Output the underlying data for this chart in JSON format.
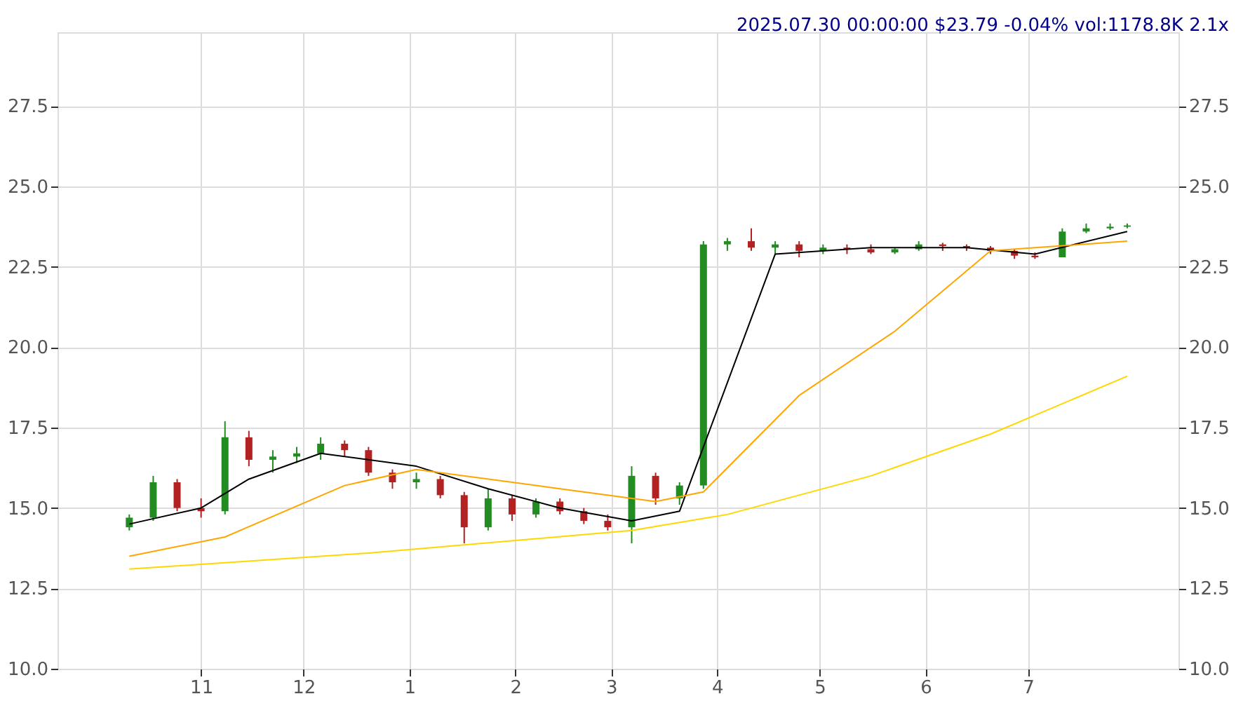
{
  "chart_data": {
    "type": "candlestick",
    "title": "2025.07.30 00:00:00 $23.79 -0.04% vol:1178.8K 2.1x",
    "x": [
      "2024-10-11",
      "2024-10-18",
      "2024-10-25",
      "2024-11-01",
      "2024-11-08",
      "2024-11-15",
      "2024-11-22",
      "2024-11-29",
      "2024-12-06",
      "2024-12-13",
      "2024-12-20",
      "2024-12-27",
      "2025-01-03",
      "2025-01-10",
      "2025-01-17",
      "2025-01-24",
      "2025-01-31",
      "2025-02-07",
      "2025-02-14",
      "2025-02-21",
      "2025-02-28",
      "2025-03-07",
      "2025-03-14",
      "2025-03-21",
      "2025-03-28",
      "2025-04-04",
      "2025-04-11",
      "2025-04-18",
      "2025-04-25",
      "2025-05-02",
      "2025-05-09",
      "2025-05-16",
      "2025-05-23",
      "2025-05-30",
      "2025-06-06",
      "2025-06-13",
      "2025-06-20",
      "2025-06-27",
      "2025-07-03",
      "2025-07-11",
      "2025-07-18",
      "2025-07-25",
      "2025-07-30"
    ],
    "ohlc": [
      [
        14.4,
        14.8,
        14.3,
        14.7
      ],
      [
        14.7,
        16.0,
        14.6,
        15.8
      ],
      [
        15.8,
        15.9,
        14.9,
        15.0
      ],
      [
        15.0,
        15.3,
        14.7,
        14.9
      ],
      [
        14.9,
        17.7,
        14.8,
        17.2
      ],
      [
        17.2,
        17.4,
        16.3,
        16.5
      ],
      [
        16.5,
        16.8,
        16.1,
        16.6
      ],
      [
        16.6,
        16.9,
        16.4,
        16.7
      ],
      [
        16.7,
        17.2,
        16.5,
        17.0
      ],
      [
        17.0,
        17.1,
        16.6,
        16.8
      ],
      [
        16.8,
        16.9,
        16.0,
        16.1
      ],
      [
        16.1,
        16.2,
        15.6,
        15.8
      ],
      [
        15.8,
        16.1,
        15.6,
        15.9
      ],
      [
        15.9,
        16.0,
        15.3,
        15.4
      ],
      [
        15.4,
        15.5,
        13.9,
        14.4
      ],
      [
        14.4,
        15.6,
        14.3,
        15.3
      ],
      [
        15.3,
        15.4,
        14.6,
        14.8
      ],
      [
        14.8,
        15.3,
        14.7,
        15.2
      ],
      [
        15.2,
        15.3,
        14.8,
        14.9
      ],
      [
        14.9,
        15.0,
        14.5,
        14.6
      ],
      [
        14.6,
        14.8,
        14.3,
        14.4
      ],
      [
        14.4,
        16.3,
        13.9,
        16.0
      ],
      [
        16.0,
        16.1,
        15.1,
        15.3
      ],
      [
        15.3,
        15.8,
        15.1,
        15.7
      ],
      [
        15.7,
        23.3,
        15.6,
        23.2
      ],
      [
        23.2,
        23.4,
        23.0,
        23.3
      ],
      [
        23.3,
        23.7,
        23.0,
        23.1
      ],
      [
        23.1,
        23.3,
        22.9,
        23.2
      ],
      [
        23.2,
        23.3,
        22.8,
        23.0
      ],
      [
        23.0,
        23.2,
        22.9,
        23.1
      ],
      [
        23.1,
        23.2,
        22.9,
        23.05
      ],
      [
        23.05,
        23.2,
        22.9,
        22.95
      ],
      [
        22.95,
        23.1,
        22.9,
        23.05
      ],
      [
        23.05,
        23.3,
        23.0,
        23.2
      ],
      [
        23.2,
        23.25,
        23.0,
        23.15
      ],
      [
        23.15,
        23.2,
        23.0,
        23.1
      ],
      [
        23.1,
        23.15,
        22.9,
        23.0
      ],
      [
        23.0,
        23.05,
        22.75,
        22.85
      ],
      [
        22.85,
        22.95,
        22.75,
        22.8
      ],
      [
        22.8,
        23.7,
        22.8,
        23.6
      ],
      [
        23.6,
        23.85,
        23.55,
        23.7
      ],
      [
        23.7,
        23.85,
        23.65,
        23.75
      ],
      [
        23.75,
        23.85,
        23.7,
        23.79
      ]
    ],
    "colors": [
      "#228b22",
      "#228b22",
      "#b22222",
      "#b22222",
      "#228b22",
      "#b22222",
      "#228b22",
      "#228b22",
      "#228b22",
      "#b22222",
      "#b22222",
      "#b22222",
      "#228b22",
      "#b22222",
      "#b22222",
      "#228b22",
      "#b22222",
      "#228b22",
      "#b22222",
      "#b22222",
      "#b22222",
      "#228b22",
      "#b22222",
      "#228b22",
      "#228b22",
      "#228b22",
      "#b22222",
      "#228b22",
      "#b22222",
      "#228b22",
      "#b22222",
      "#b22222",
      "#228b22",
      "#228b22",
      "#b22222",
      "#b22222",
      "#b22222",
      "#b22222",
      "#b22222",
      "#228b22",
      "#228b22",
      "#228b22",
      "#228b22"
    ],
    "series": [
      {
        "type": "line",
        "color": "#000000",
        "x": [
          "2024-10-11",
          "2024-11-01",
          "2024-11-15",
          "2024-12-06",
          "2025-01-03",
          "2025-01-24",
          "2025-02-14",
          "2025-03-07",
          "2025-03-21",
          "2025-04-18",
          "2025-05-16",
          "2025-06-13",
          "2025-07-03",
          "2025-07-30"
        ],
        "values": [
          14.5,
          15.0,
          15.9,
          16.7,
          16.3,
          15.6,
          15.0,
          14.6,
          14.9,
          22.9,
          23.1,
          23.1,
          22.9,
          23.6
        ]
      },
      {
        "type": "line",
        "color": "#ffa500",
        "x": [
          "2024-10-11",
          "2024-11-08",
          "2024-12-13",
          "2025-01-03",
          "2025-02-14",
          "2025-03-14",
          "2025-03-28",
          "2025-04-25",
          "2025-05-23",
          "2025-06-20",
          "2025-07-30"
        ],
        "values": [
          13.5,
          14.1,
          15.7,
          16.2,
          15.6,
          15.2,
          15.5,
          18.5,
          20.5,
          23.0,
          23.3
        ]
      },
      {
        "type": "line",
        "color": "#ffd700",
        "x": [
          "2024-10-11",
          "2024-12-20",
          "2025-03-07",
          "2025-04-04",
          "2025-05-16",
          "2025-06-20",
          "2025-07-30"
        ],
        "values": [
          13.1,
          13.6,
          14.3,
          14.8,
          16.0,
          17.3,
          19.1
        ]
      }
    ],
    "xlim": [
      "2024-09-20",
      "2025-08-14"
    ],
    "xticks": [
      {
        "value": "2024-11-01",
        "label": "11"
      },
      {
        "value": "2024-12-01",
        "label": "12"
      },
      {
        "value": "2025-01-01",
        "label": "1"
      },
      {
        "value": "2025-02-01",
        "label": "2"
      },
      {
        "value": "2025-03-01",
        "label": "3"
      },
      {
        "value": "2025-04-01",
        "label": "4"
      },
      {
        "value": "2025-05-01",
        "label": "5"
      },
      {
        "value": "2025-06-01",
        "label": "6"
      },
      {
        "value": "2025-07-01",
        "label": "7"
      }
    ],
    "ylim": [
      10,
      29.8
    ],
    "yticks": [
      {
        "value": 10,
        "label": "10.0"
      },
      12.5,
      {
        "value": 15,
        "label": "15.0"
      },
      17.5,
      {
        "value": 20,
        "label": "20.0"
      },
      22.5,
      {
        "value": 25,
        "label": "25.0"
      },
      27.5
    ],
    "y2lim": [
      10,
      29.8
    ],
    "y2ticks": [
      {
        "value": 10,
        "label": "10.0"
      },
      12.5,
      {
        "value": 15,
        "label": "15.0"
      },
      17.5,
      {
        "value": 20,
        "label": "20.0"
      },
      22.5,
      {
        "value": 25,
        "label": "25.0"
      },
      27.5
    ],
    "grid": true
  }
}
